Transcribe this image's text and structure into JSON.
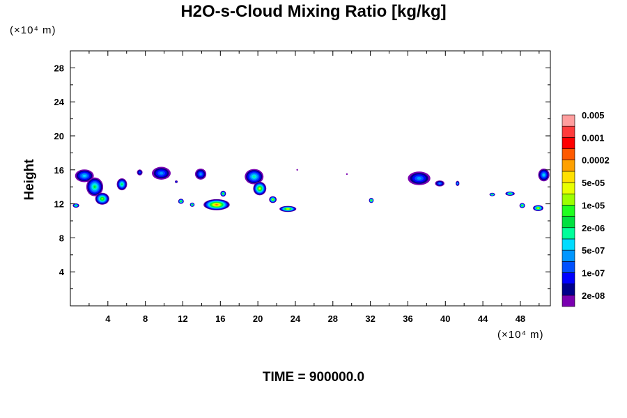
{
  "chart_data": {
    "type": "heatmap",
    "title": "H2O-s-Cloud Mixing Ratio [kg/kg]",
    "xlabel": "",
    "ylabel": "Height",
    "x_unit": "(×10⁴ m)",
    "y_unit": "(×10⁴ m)",
    "footer": "TIME = 900000.0",
    "xlim": [
      0,
      51.2
    ],
    "ylim": [
      0,
      30
    ],
    "x_ticks": [
      4,
      8,
      12,
      16,
      20,
      24,
      28,
      32,
      36,
      40,
      44,
      48
    ],
    "y_ticks": [
      4,
      8,
      12,
      16,
      20,
      24,
      28
    ],
    "colorbar": {
      "colors": [
        "#7a00b0",
        "#00008b",
        "#0000ff",
        "#0050ff",
        "#0096ff",
        "#00dcff",
        "#00ff9a",
        "#00e040",
        "#20ff20",
        "#9cff00",
        "#e8ff00",
        "#ffe000",
        "#ffa000",
        "#ff5a00",
        "#ff0000",
        "#ff3c3c",
        "#ff9e9e"
      ],
      "labels": [
        "2e-08",
        "1e-07",
        "5e-07",
        "2e-06",
        "1e-05",
        "5e-05",
        "0.0002",
        "0.001",
        "0.005"
      ]
    },
    "cloud_patches": [
      {
        "x": 1.5,
        "y": 15.3,
        "w": 2.0,
        "h": 1.5,
        "peak": 5
      },
      {
        "x": 2.6,
        "y": 14.0,
        "w": 1.8,
        "h": 2.2,
        "peak": 7
      },
      {
        "x": 3.4,
        "y": 12.6,
        "w": 1.5,
        "h": 1.4,
        "peak": 9
      },
      {
        "x": 0.6,
        "y": 11.8,
        "w": 0.7,
        "h": 0.5,
        "peak": 8
      },
      {
        "x": 5.5,
        "y": 14.3,
        "w": 1.1,
        "h": 1.4,
        "peak": 7
      },
      {
        "x": 7.4,
        "y": 15.7,
        "w": 0.6,
        "h": 0.7,
        "peak": 3
      },
      {
        "x": 9.7,
        "y": 15.6,
        "w": 2.0,
        "h": 1.5,
        "peak": 4
      },
      {
        "x": 11.3,
        "y": 14.6,
        "w": 0.3,
        "h": 0.3,
        "peak": 3
      },
      {
        "x": 13.9,
        "y": 15.5,
        "w": 1.2,
        "h": 1.3,
        "peak": 4
      },
      {
        "x": 11.8,
        "y": 12.3,
        "w": 0.6,
        "h": 0.6,
        "peak": 9
      },
      {
        "x": 13.0,
        "y": 11.9,
        "w": 0.5,
        "h": 0.5,
        "peak": 9
      },
      {
        "x": 15.6,
        "y": 11.9,
        "w": 2.8,
        "h": 1.3,
        "peak": 13
      },
      {
        "x": 16.3,
        "y": 13.2,
        "w": 0.6,
        "h": 0.7,
        "peak": 9
      },
      {
        "x": 19.6,
        "y": 15.2,
        "w": 2.0,
        "h": 1.8,
        "peak": 6
      },
      {
        "x": 20.2,
        "y": 13.8,
        "w": 1.4,
        "h": 1.6,
        "peak": 10
      },
      {
        "x": 21.6,
        "y": 12.5,
        "w": 0.8,
        "h": 0.8,
        "peak": 10
      },
      {
        "x": 23.2,
        "y": 11.4,
        "w": 1.8,
        "h": 0.7,
        "peak": 11
      },
      {
        "x": 24.2,
        "y": 16.0,
        "w": 0.15,
        "h": 0.15,
        "peak": 0
      },
      {
        "x": 29.5,
        "y": 15.5,
        "w": 0.15,
        "h": 0.15,
        "peak": 0
      },
      {
        "x": 32.1,
        "y": 12.4,
        "w": 0.5,
        "h": 0.6,
        "peak": 10
      },
      {
        "x": 37.2,
        "y": 15.0,
        "w": 2.4,
        "h": 1.6,
        "peak": 4
      },
      {
        "x": 39.4,
        "y": 14.4,
        "w": 1.0,
        "h": 0.7,
        "peak": 4
      },
      {
        "x": 41.3,
        "y": 14.4,
        "w": 0.4,
        "h": 0.6,
        "peak": 5
      },
      {
        "x": 45.0,
        "y": 13.1,
        "w": 0.6,
        "h": 0.4,
        "peak": 9
      },
      {
        "x": 46.9,
        "y": 13.2,
        "w": 1.0,
        "h": 0.5,
        "peak": 9
      },
      {
        "x": 48.2,
        "y": 11.8,
        "w": 0.6,
        "h": 0.6,
        "peak": 10
      },
      {
        "x": 49.9,
        "y": 11.5,
        "w": 1.1,
        "h": 0.7,
        "peak": 11
      },
      {
        "x": 50.5,
        "y": 15.4,
        "w": 1.2,
        "h": 1.5,
        "peak": 5
      }
    ]
  }
}
